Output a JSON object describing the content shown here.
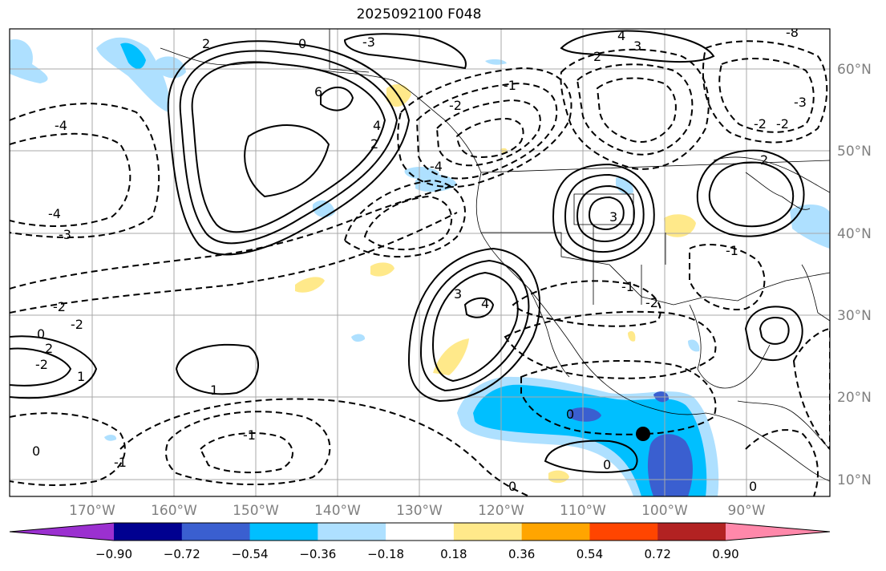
{
  "title": "2025092100 F048",
  "lon_labels": [
    "170°W",
    "160°W",
    "150°W",
    "140°W",
    "130°W",
    "120°W",
    "110°W",
    "100°W",
    "90°W"
  ],
  "lat_labels": [
    "60°N",
    "50°N",
    "40°N",
    "30°N",
    "20°N",
    "10°N"
  ],
  "colorbar": {
    "tick_labels": [
      "−0.90",
      "−0.72",
      "−0.54",
      "−0.36",
      "−0.18",
      "0.18",
      "0.36",
      "0.54",
      "0.72",
      "0.90"
    ],
    "colors": [
      "#9b30d0",
      "#000090",
      "#3a5fd0",
      "#00bfff",
      "#aee0ff",
      "#ffffff",
      "#ffe98a",
      "#ffa500",
      "#ff4500",
      "#b22222",
      "#ff88aa"
    ]
  },
  "contour_labels": [
    "4",
    "3",
    "2",
    "6",
    "0",
    "-1",
    "4",
    "2",
    "-2",
    "-4",
    "-3",
    "-2",
    "0",
    "2",
    "-2",
    "1",
    "1",
    "3",
    "-1",
    "-2",
    "-3",
    "-2",
    "-2",
    "-4",
    "-3",
    "2",
    "-8",
    "4",
    "3",
    "-4",
    "2",
    "-1",
    "0",
    "-1",
    "0",
    "0",
    "0",
    "0",
    "-1",
    "-2"
  ],
  "storm_marker": "storm-center"
}
